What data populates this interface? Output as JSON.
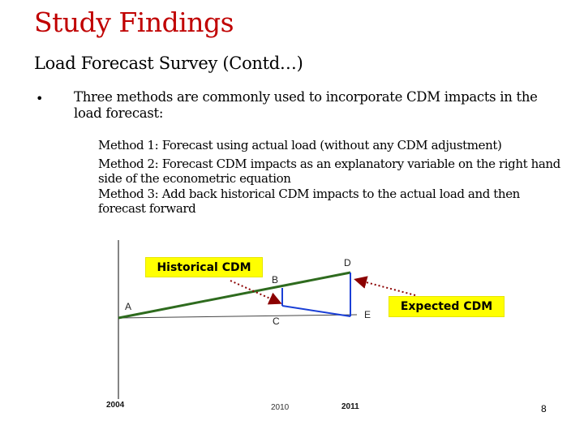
{
  "slide": {
    "title": "Study Findings",
    "subtitle": "Load Forecast Survey (Contd…)",
    "bullet": {
      "marker": "•",
      "text": "Three methods are commonly used to incorporate CDM impacts in the load forecast:"
    },
    "methods": [
      {
        "label": "Method 1:",
        "text": " Forecast using actual load (without any CDM adjustment)"
      },
      {
        "label": "Method 2:",
        "text": " Forecast CDM impacts as an explanatory variable on the right hand side of the econometric equation"
      },
      {
        "label": "Method 3:",
        "text": " Add back historical CDM impacts to the actual load and then forecast forward"
      }
    ],
    "page_number": "8"
  },
  "diagram": {
    "callouts": {
      "historical": "Historical CDM",
      "expected": "Expected CDM"
    },
    "points": {
      "a": "A",
      "b": "B",
      "c": "C",
      "d": "D",
      "e": "E"
    },
    "years": {
      "y2004": "2004",
      "y2010": "2010",
      "y2011": "2011"
    },
    "colors": {
      "green_line": "#2e6b1e",
      "blue_line": "#1a3fd6",
      "gray_line": "#444444",
      "arrow": "#8b0000",
      "callout_bg": "#ffff00"
    }
  }
}
